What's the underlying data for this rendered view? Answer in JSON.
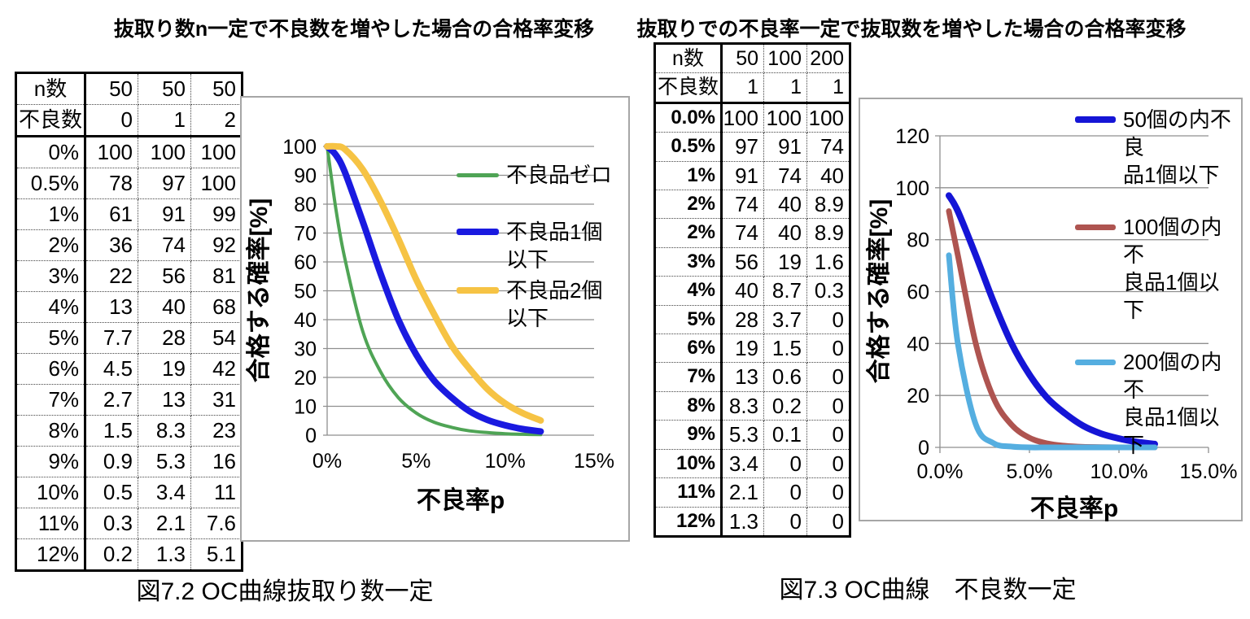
{
  "page": {
    "background": "#ffffff"
  },
  "left_panel": {
    "title": "抜取り数n一定で不良数を増やした場合の合格率変移",
    "caption": "図7.2 OC曲線抜取り数一定",
    "table": {
      "header_rows": [
        {
          "label": "n数",
          "values": [
            "50",
            "50",
            "50"
          ]
        },
        {
          "label": "不良数",
          "values": [
            "0",
            "1",
            "2"
          ]
        }
      ],
      "rows": [
        {
          "label": "0%",
          "values": [
            "100",
            "100",
            "100"
          ]
        },
        {
          "label": "0.5%",
          "values": [
            "78",
            "97",
            "100"
          ]
        },
        {
          "label": "1%",
          "values": [
            "61",
            "91",
            "99"
          ]
        },
        {
          "label": "2%",
          "values": [
            "36",
            "74",
            "92"
          ]
        },
        {
          "label": "3%",
          "values": [
            "22",
            "56",
            "81"
          ]
        },
        {
          "label": "4%",
          "values": [
            "13",
            "40",
            "68"
          ]
        },
        {
          "label": "5%",
          "values": [
            "7.7",
            "28",
            "54"
          ]
        },
        {
          "label": "6%",
          "values": [
            "4.5",
            "19",
            "42"
          ]
        },
        {
          "label": "7%",
          "values": [
            "2.7",
            "13",
            "31"
          ]
        },
        {
          "label": "8%",
          "values": [
            "1.5",
            "8.3",
            "23"
          ]
        },
        {
          "label": "9%",
          "values": [
            "0.9",
            "5.3",
            "16"
          ]
        },
        {
          "label": "10%",
          "values": [
            "0.5",
            "3.4",
            "11"
          ]
        },
        {
          "label": "11%",
          "values": [
            "0.3",
            "2.1",
            "7.6"
          ]
        },
        {
          "label": "12%",
          "values": [
            "0.2",
            "1.3",
            "5.1"
          ]
        }
      ]
    }
  },
  "right_panel": {
    "title": "抜取りでの不良率一定で抜取数を増やした場合の合格率変移",
    "caption": "図7.3 OC曲線　不良数一定",
    "table": {
      "header_rows": [
        {
          "label": "n数",
          "values": [
            "50",
            "100",
            "200"
          ]
        },
        {
          "label": "不良数",
          "values": [
            "1",
            "1",
            "1"
          ]
        }
      ],
      "rows": [
        {
          "label": "0.0%",
          "values": [
            "100",
            "100",
            "100"
          ]
        },
        {
          "label": "0.5%",
          "values": [
            "97",
            "91",
            "74"
          ]
        },
        {
          "label": "1%",
          "values": [
            "91",
            "74",
            "40"
          ]
        },
        {
          "label": "2%",
          "values": [
            "74",
            "40",
            "8.9"
          ]
        },
        {
          "label": "2%",
          "values": [
            "74",
            "40",
            "8.9"
          ]
        },
        {
          "label": "3%",
          "values": [
            "56",
            "19",
            "1.6"
          ]
        },
        {
          "label": "4%",
          "values": [
            "40",
            "8.7",
            "0.3"
          ]
        },
        {
          "label": "5%",
          "values": [
            "28",
            "3.7",
            "0"
          ]
        },
        {
          "label": "6%",
          "values": [
            "19",
            "1.5",
            "0"
          ]
        },
        {
          "label": "7%",
          "values": [
            "13",
            "0.6",
            "0"
          ]
        },
        {
          "label": "8%",
          "values": [
            "8.3",
            "0.2",
            "0"
          ]
        },
        {
          "label": "9%",
          "values": [
            "5.3",
            "0.1",
            "0"
          ]
        },
        {
          "label": "10%",
          "values": [
            "3.4",
            "0",
            "0"
          ]
        },
        {
          "label": "11%",
          "values": [
            "2.1",
            "0",
            "0"
          ]
        },
        {
          "label": "12%",
          "values": [
            "1.3",
            "0",
            "0"
          ]
        }
      ]
    }
  },
  "chart_data": [
    {
      "type": "line",
      "title": "抜取り数n一定で不良数を増やした場合の合格率変移",
      "xlabel": "不良率p",
      "ylabel": "合格する確率[%]",
      "xlim": [
        0,
        15
      ],
      "ylim": [
        0,
        100
      ],
      "ytick_step": 10,
      "grid": "horizontal",
      "grid_color": "#8f8f8f",
      "axis_color": "#8f8f8f",
      "legend_position": "right",
      "xticks": [
        {
          "pos": 0,
          "label": "0%"
        },
        {
          "pos": 5,
          "label": "5%"
        },
        {
          "pos": 10,
          "label": "10%"
        },
        {
          "pos": 15,
          "label": "15%"
        }
      ],
      "series": [
        {
          "name": "不良品ゼロ",
          "legend_label": "不良品ゼロ",
          "color": "#4FA455",
          "stroke_width": 4,
          "x": [
            0,
            0.5,
            1,
            2,
            3,
            4,
            5,
            6,
            7,
            8,
            9,
            10,
            11,
            12
          ],
          "y": [
            100,
            78,
            61,
            36,
            22,
            13,
            7.7,
            4.5,
            2.7,
            1.5,
            0.9,
            0.5,
            0.3,
            0.2
          ]
        },
        {
          "name": "不良品1個以下",
          "legend_label": "不良品1個\n以下",
          "color": "#1A1AE0",
          "stroke_width": 8,
          "x": [
            0,
            0.5,
            1,
            2,
            3,
            4,
            5,
            6,
            7,
            8,
            9,
            10,
            11,
            12
          ],
          "y": [
            100,
            97,
            91,
            74,
            56,
            40,
            28,
            19,
            13,
            8.3,
            5.3,
            3.4,
            2.1,
            1.3
          ]
        },
        {
          "name": "不良品2個以下",
          "legend_label": "不良品2個\n以下",
          "color": "#F6C344",
          "stroke_width": 8,
          "x": [
            0,
            0.5,
            1,
            2,
            3,
            4,
            5,
            6,
            7,
            8,
            9,
            10,
            11,
            12
          ],
          "y": [
            100,
            100,
            99,
            92,
            81,
            68,
            54,
            42,
            31,
            23,
            16,
            11,
            7.6,
            5.1
          ]
        }
      ]
    },
    {
      "type": "line",
      "title": "抜取りでの不良率一定で抜取数を増やした場合の合格率変移",
      "xlabel": "不良率p",
      "ylabel": "合格する確率[%]",
      "xlim": [
        0,
        15
      ],
      "ylim": [
        0,
        120
      ],
      "ytick_step": 20,
      "grid": "horizontal",
      "grid_color": "#8f8f8f",
      "axis_color": "#8f8f8f",
      "legend_position": "right",
      "xticks": [
        {
          "pos": 0,
          "label": "0.0%"
        },
        {
          "pos": 5,
          "label": "5.0%"
        },
        {
          "pos": 10,
          "label": "10.0%"
        },
        {
          "pos": 15,
          "label": "15.0%"
        }
      ],
      "series": [
        {
          "name": "50個の内不良品1個以下",
          "legend_label": "50個の内不良\n品1個以下",
          "color": "#1515D6",
          "stroke_width": 8,
          "x": [
            0.5,
            1,
            2,
            3,
            4,
            5,
            6,
            7,
            8,
            9,
            10,
            11,
            12
          ],
          "y": [
            97,
            91,
            74,
            56,
            40,
            28,
            19,
            13,
            8.3,
            5.3,
            3.4,
            2.1,
            1.3
          ]
        },
        {
          "name": "100個の内不良品1個以下",
          "legend_label": "100個の内不\n良品1個以下",
          "color": "#AE5450",
          "stroke_width": 7,
          "x": [
            0.5,
            1,
            2,
            3,
            4,
            5,
            6,
            7,
            8,
            9,
            10,
            11,
            12
          ],
          "y": [
            91,
            74,
            40,
            19,
            8.7,
            3.7,
            1.5,
            0.6,
            0.2,
            0.1,
            0,
            0,
            0
          ]
        },
        {
          "name": "200個の内不良品1個以下",
          "legend_label": "200個の内不\n良品1個以下",
          "color": "#55AEE0",
          "stroke_width": 7,
          "x": [
            0.5,
            1,
            2,
            3,
            4,
            5,
            6,
            7,
            8,
            9,
            10,
            11,
            12
          ],
          "y": [
            74,
            40,
            8.9,
            1.6,
            0.3,
            0,
            0,
            0,
            0,
            0,
            0,
            0,
            0
          ]
        }
      ]
    }
  ]
}
